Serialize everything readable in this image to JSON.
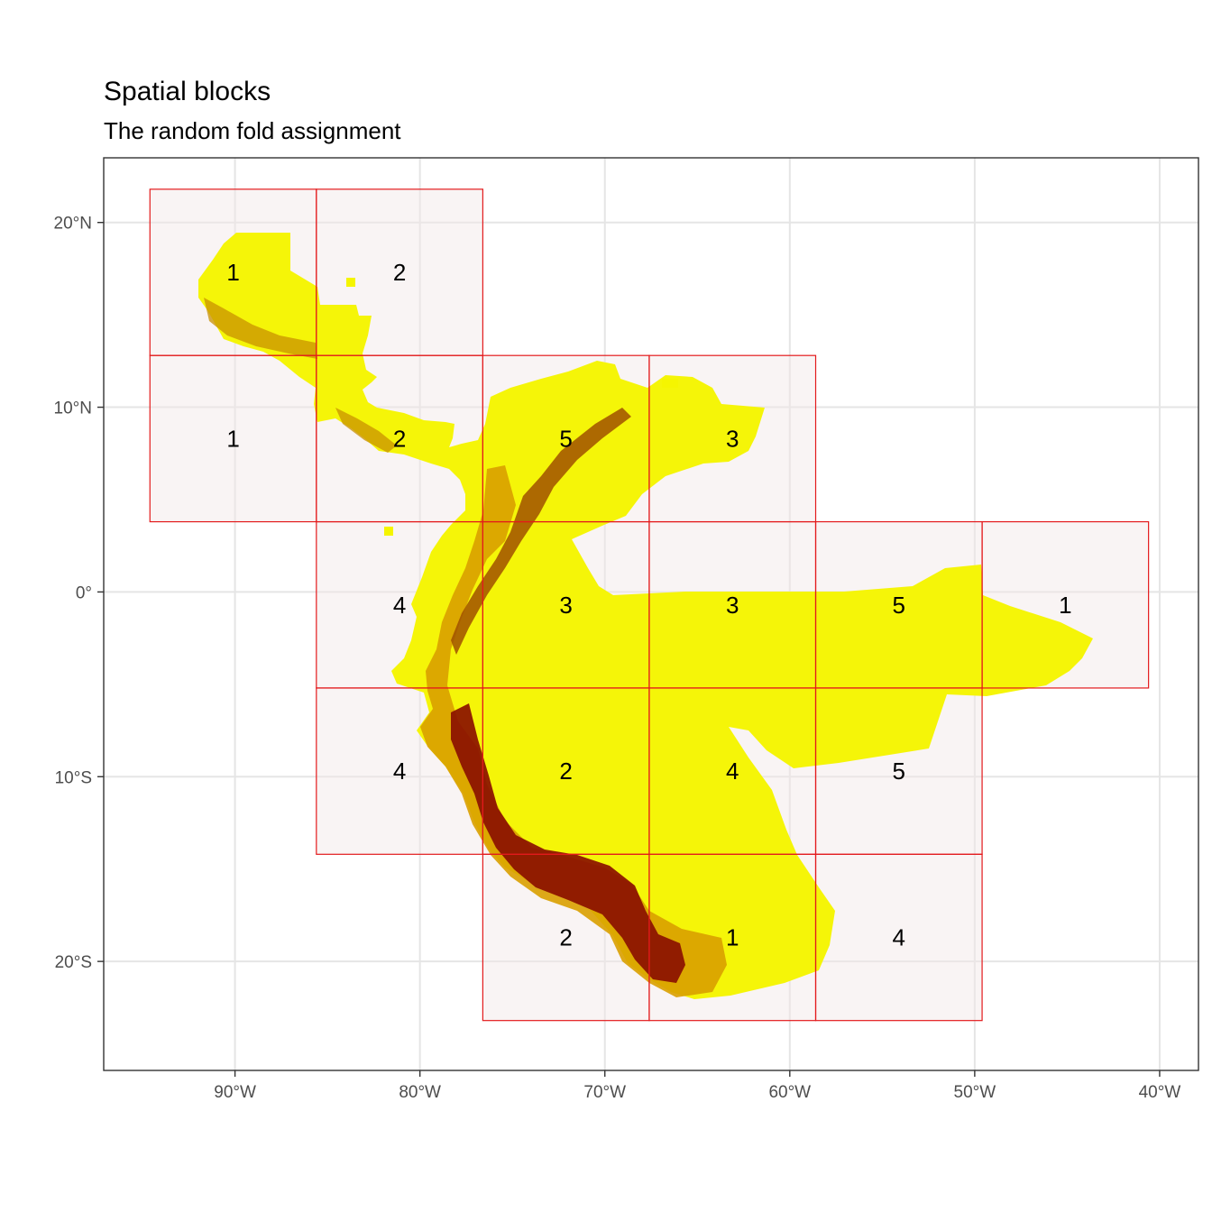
{
  "title": "Spatial blocks",
  "subtitle": "The random fold assignment",
  "axes": {
    "x_range": [
      -97.1,
      -37.9
    ],
    "y_range": [
      -25.9,
      23.5
    ],
    "x_ticks": [
      {
        "value": -90,
        "label": "90°W"
      },
      {
        "value": -80,
        "label": "80°W"
      },
      {
        "value": -70,
        "label": "70°W"
      },
      {
        "value": -60,
        "label": "60°W"
      },
      {
        "value": -50,
        "label": "50°W"
      },
      {
        "value": -40,
        "label": "40°W"
      }
    ],
    "y_ticks": [
      {
        "value": 20,
        "label": "20°N"
      },
      {
        "value": 10,
        "label": "10°N"
      },
      {
        "value": 0,
        "label": "0°"
      },
      {
        "value": -10,
        "label": "10°S"
      },
      {
        "value": -20,
        "label": "20°S"
      }
    ],
    "grid": true
  },
  "colors": {
    "block_border": "#e31a1c",
    "block_fill": "#f2e6e6",
    "raster_low": "#f7f700",
    "raster_mid": "#d9a600",
    "raster_high": "#7a0000"
  },
  "blocks": [
    {
      "lon": [
        -94.6,
        -85.6
      ],
      "lat": [
        12.8,
        21.8
      ],
      "fold": "1"
    },
    {
      "lon": [
        -85.6,
        -76.6
      ],
      "lat": [
        12.8,
        21.8
      ],
      "fold": "2"
    },
    {
      "lon": [
        -94.6,
        -85.6
      ],
      "lat": [
        3.8,
        12.8
      ],
      "fold": "1"
    },
    {
      "lon": [
        -85.6,
        -76.6
      ],
      "lat": [
        3.8,
        12.8
      ],
      "fold": "2"
    },
    {
      "lon": [
        -76.6,
        -67.6
      ],
      "lat": [
        3.8,
        12.8
      ],
      "fold": "5"
    },
    {
      "lon": [
        -67.6,
        -58.6
      ],
      "lat": [
        3.8,
        12.8
      ],
      "fold": "3"
    },
    {
      "lon": [
        -85.6,
        -76.6
      ],
      "lat": [
        -5.2,
        3.8
      ],
      "fold": "4"
    },
    {
      "lon": [
        -76.6,
        -67.6
      ],
      "lat": [
        -5.2,
        3.8
      ],
      "fold": "3"
    },
    {
      "lon": [
        -67.6,
        -58.6
      ],
      "lat": [
        -5.2,
        3.8
      ],
      "fold": "3"
    },
    {
      "lon": [
        -58.6,
        -49.6
      ],
      "lat": [
        -5.2,
        3.8
      ],
      "fold": "5"
    },
    {
      "lon": [
        -49.6,
        -40.6
      ],
      "lat": [
        -5.2,
        3.8
      ],
      "fold": "1"
    },
    {
      "lon": [
        -85.6,
        -76.6
      ],
      "lat": [
        -14.2,
        -5.2
      ],
      "fold": "4"
    },
    {
      "lon": [
        -76.6,
        -67.6
      ],
      "lat": [
        -14.2,
        -5.2
      ],
      "fold": "2"
    },
    {
      "lon": [
        -67.6,
        -58.6
      ],
      "lat": [
        -14.2,
        -5.2
      ],
      "fold": "4"
    },
    {
      "lon": [
        -58.6,
        -49.6
      ],
      "lat": [
        -14.2,
        -5.2
      ],
      "fold": "5"
    },
    {
      "lon": [
        -76.6,
        -67.6
      ],
      "lat": [
        -23.2,
        -14.2
      ],
      "fold": "2"
    },
    {
      "lon": [
        -67.6,
        -58.6
      ],
      "lat": [
        -23.2,
        -14.2
      ],
      "fold": "1"
    },
    {
      "lon": [
        -58.6,
        -49.6
      ],
      "lat": [
        -23.2,
        -14.2
      ],
      "fold": "4"
    }
  ]
}
